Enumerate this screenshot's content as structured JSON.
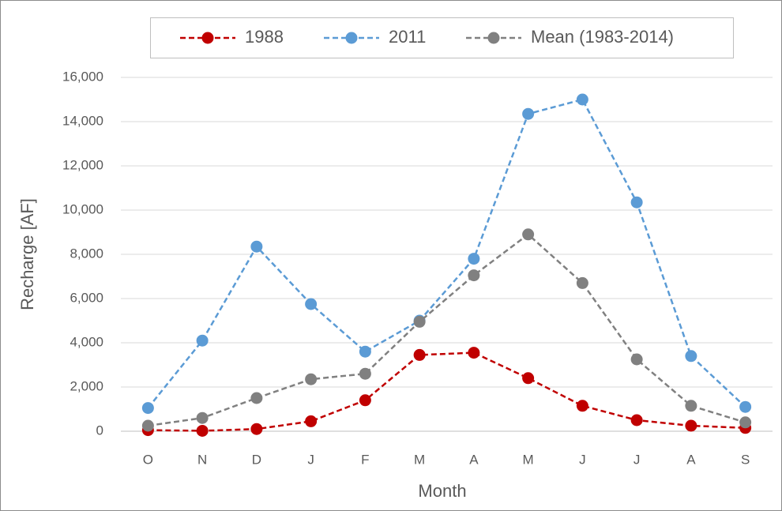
{
  "chart_data": {
    "type": "line",
    "x_label": "Month",
    "y_label": "Recharge [AF]",
    "categories": [
      "O",
      "N",
      "D",
      "J",
      "F",
      "M",
      "A",
      "M",
      "J",
      "J",
      "A",
      "S"
    ],
    "series": [
      {
        "name": "1988",
        "color": "#c00000",
        "values": [
          50,
          20,
          100,
          450,
          1400,
          3450,
          3550,
          2400,
          1150,
          500,
          250,
          150
        ]
      },
      {
        "name": "2011",
        "color": "#5b9bd5",
        "values": [
          1050,
          4100,
          8350,
          5750,
          3600,
          5000,
          7800,
          14350,
          15000,
          10350,
          3400,
          1100
        ]
      },
      {
        "name": "Mean (1983-2014)",
        "color": "#808080",
        "values": [
          250,
          600,
          1500,
          2350,
          2600,
          4950,
          7050,
          8900,
          6700,
          3250,
          1150,
          400
        ]
      }
    ],
    "ylim": [
      0,
      16000
    ],
    "yticks": [
      0,
      {
        "value": 2000,
        "label": "2,000"
      },
      {
        "value": 4000,
        "label": "4,000"
      },
      {
        "value": 6000,
        "label": "6,000"
      },
      {
        "value": 8000,
        "label": "8,000"
      },
      {
        "value": 10000,
        "label": "10,000"
      },
      {
        "value": 12000,
        "label": "12,000"
      },
      {
        "value": 14000,
        "label": "14,000"
      },
      {
        "value": 16000,
        "label": "16,000"
      }
    ],
    "grid": true,
    "legend": "top"
  }
}
